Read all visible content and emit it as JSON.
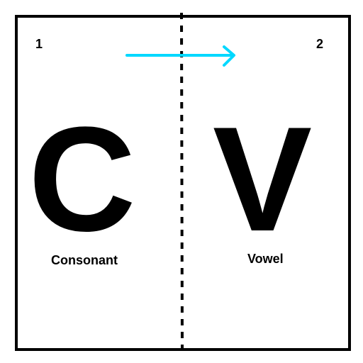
{
  "panels": {
    "left": {
      "number": "1",
      "letter": "C",
      "caption": "Consonant"
    },
    "right": {
      "number": "2",
      "letter": "V",
      "caption": "Vowel"
    }
  },
  "colors": {
    "arrow": "#00d8ff",
    "divider": "#000000",
    "frame": "#000000",
    "text": "#000000"
  },
  "icons": {
    "arrow": "right-arrow-icon"
  }
}
